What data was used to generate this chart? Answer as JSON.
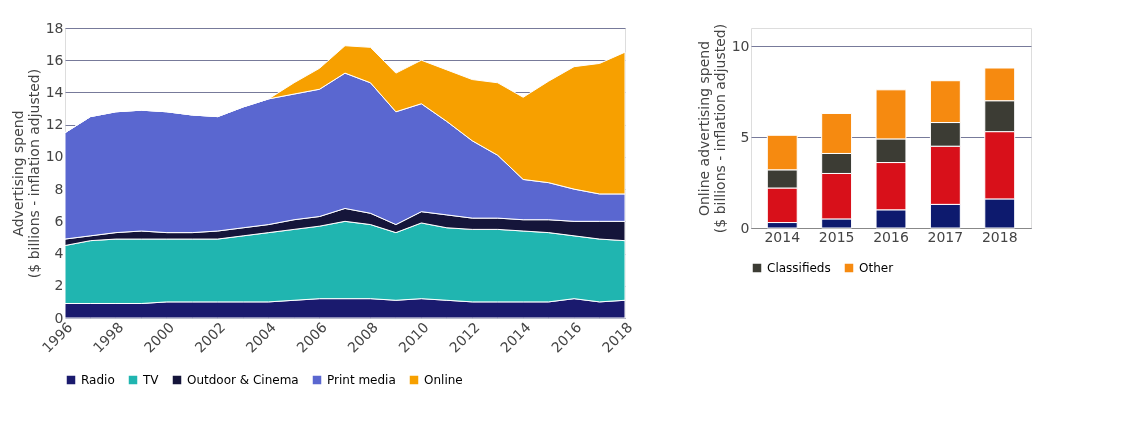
{
  "chart_data": [
    {
      "type": "area",
      "stacked": true,
      "ylabel": "Advertising spend\n($ billions - inflation adjusted)",
      "x": [
        1996,
        1997,
        1998,
        1999,
        2000,
        2001,
        2002,
        2003,
        2004,
        2005,
        2006,
        2007,
        2008,
        2009,
        2010,
        2011,
        2012,
        2013,
        2014,
        2015,
        2016,
        2017,
        2018
      ],
      "xlim": [
        1996,
        2018
      ],
      "xticks": [
        1996,
        1998,
        2000,
        2002,
        2004,
        2006,
        2008,
        2010,
        2012,
        2014,
        2016,
        2018
      ],
      "ylim": [
        0,
        18
      ],
      "yticks": [
        0,
        2,
        4,
        6,
        8,
        10,
        12,
        14,
        16,
        18
      ],
      "grid": "y",
      "legend": "bottom",
      "series": [
        {
          "name": "Radio",
          "color": "#1a1a6e",
          "values": [
            0.9,
            0.9,
            0.9,
            0.9,
            1.0,
            1.0,
            1.0,
            1.0,
            1.0,
            1.1,
            1.2,
            1.2,
            1.2,
            1.1,
            1.2,
            1.1,
            1.0,
            1.0,
            1.0,
            1.0,
            1.2,
            1.0,
            1.1
          ]
        },
        {
          "name": "TV",
          "color": "#20b5b0",
          "values": [
            3.6,
            3.9,
            4.0,
            4.0,
            3.9,
            3.9,
            3.9,
            4.1,
            4.3,
            4.4,
            4.5,
            4.8,
            4.6,
            4.2,
            4.7,
            4.5,
            4.5,
            4.5,
            4.4,
            4.3,
            3.9,
            3.9,
            3.7
          ]
        },
        {
          "name": "Outdoor & Cinema",
          "color": "#15153a",
          "values": [
            0.4,
            0.3,
            0.4,
            0.5,
            0.4,
            0.4,
            0.5,
            0.5,
            0.5,
            0.6,
            0.6,
            0.8,
            0.7,
            0.5,
            0.7,
            0.8,
            0.7,
            0.7,
            0.7,
            0.8,
            0.9,
            1.1,
            1.2
          ]
        },
        {
          "name": "Print media",
          "color": "#5a67d0",
          "values": [
            6.6,
            7.4,
            7.5,
            7.5,
            7.5,
            7.3,
            7.1,
            7.5,
            7.8,
            7.8,
            7.9,
            8.4,
            8.1,
            7.0,
            6.7,
            5.8,
            4.8,
            3.9,
            2.5,
            2.3,
            2.0,
            1.7,
            1.7
          ]
        },
        {
          "name": "Online",
          "color": "#f7a000",
          "values": [
            0,
            0,
            0,
            0,
            0,
            0,
            0,
            0,
            0,
            0.7,
            1.3,
            1.7,
            2.2,
            2.4,
            2.7,
            3.2,
            3.8,
            4.5,
            5.1,
            6.3,
            7.6,
            8.1,
            8.8
          ]
        }
      ]
    },
    {
      "type": "bar",
      "stacked": true,
      "ylabel": "Online advertising spend\n($ billions - inflation adjusted)",
      "categories": [
        "2014",
        "2015",
        "2016",
        "2017",
        "2018"
      ],
      "ylim": [
        0,
        11
      ],
      "yticks": [
        0,
        5,
        10
      ],
      "grid": "y",
      "legend": "bottom",
      "series": [
        {
          "color": "#0d1a6e",
          "values": [
            0.3,
            0.5,
            1.0,
            1.3,
            1.6
          ]
        },
        {
          "color": "#d8101a",
          "values": [
            1.9,
            2.5,
            2.6,
            3.2,
            3.7
          ]
        },
        {
          "name": "Classifieds",
          "color": "#3c3c34",
          "values": [
            1.0,
            1.1,
            1.3,
            1.3,
            1.7
          ]
        },
        {
          "name": "Other",
          "color": "#f68a10",
          "values": [
            1.9,
            2.2,
            2.7,
            2.3,
            1.8
          ]
        }
      ]
    }
  ]
}
